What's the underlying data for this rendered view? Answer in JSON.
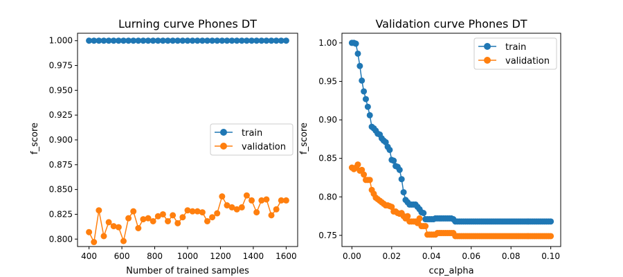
{
  "chart_data": [
    {
      "type": "line",
      "title": "Lurning curve Phones DT",
      "xlabel": "Number of trained samples",
      "ylabel": "f_score",
      "xlim": [
        330,
        1670
      ],
      "ylim": [
        0.7925,
        1.0075
      ],
      "xticks": [
        400,
        600,
        800,
        1000,
        1200,
        1400,
        1600
      ],
      "xtick_labels": [
        "400",
        "600",
        "800",
        "1000",
        "1200",
        "1400",
        "1600"
      ],
      "yticks": [
        0.8,
        0.825,
        0.85,
        0.875,
        0.9,
        0.925,
        0.95,
        0.975,
        1.0
      ],
      "ytick_labels": [
        "0.800",
        "0.825",
        "0.850",
        "0.875",
        "0.900",
        "0.925",
        "0.950",
        "0.975",
        "1.000"
      ],
      "grid": false,
      "legend": "center-right",
      "series": [
        {
          "name": "train",
          "color": "#1f77b4",
          "x": [
            400,
            430,
            460,
            490,
            520,
            550,
            580,
            610,
            640,
            670,
            700,
            730,
            760,
            790,
            820,
            850,
            880,
            910,
            940,
            970,
            1000,
            1030,
            1060,
            1090,
            1120,
            1150,
            1180,
            1210,
            1240,
            1270,
            1300,
            1330,
            1360,
            1390,
            1420,
            1450,
            1480,
            1510,
            1540,
            1570,
            1600
          ],
          "y": [
            1.0,
            1.0,
            1.0,
            1.0,
            1.0,
            1.0,
            1.0,
            1.0,
            1.0,
            1.0,
            1.0,
            1.0,
            1.0,
            1.0,
            1.0,
            1.0,
            1.0,
            1.0,
            1.0,
            1.0,
            1.0,
            1.0,
            1.0,
            1.0,
            1.0,
            1.0,
            1.0,
            1.0,
            1.0,
            1.0,
            1.0,
            1.0,
            1.0,
            1.0,
            1.0,
            1.0,
            1.0,
            1.0,
            1.0,
            1.0,
            1.0
          ]
        },
        {
          "name": "validation",
          "color": "#ff7f0e",
          "x": [
            400,
            430,
            460,
            490,
            520,
            550,
            580,
            610,
            640,
            670,
            700,
            730,
            760,
            790,
            820,
            850,
            880,
            910,
            940,
            970,
            1000,
            1030,
            1060,
            1090,
            1120,
            1150,
            1180,
            1210,
            1240,
            1270,
            1300,
            1330,
            1360,
            1390,
            1420,
            1450,
            1480,
            1510,
            1540,
            1570,
            1600
          ],
          "y": [
            0.807,
            0.797,
            0.829,
            0.803,
            0.817,
            0.813,
            0.812,
            0.798,
            0.821,
            0.828,
            0.811,
            0.82,
            0.821,
            0.818,
            0.823,
            0.825,
            0.818,
            0.824,
            0.816,
            0.822,
            0.829,
            0.828,
            0.828,
            0.827,
            0.818,
            0.822,
            0.826,
            0.843,
            0.834,
            0.832,
            0.83,
            0.832,
            0.844,
            0.839,
            0.827,
            0.839,
            0.84,
            0.824,
            0.83,
            0.839,
            0.839
          ]
        }
      ]
    },
    {
      "type": "line",
      "title": "Validation curve Phones DT",
      "xlabel": "ccp_alpha",
      "ylabel": "f_score",
      "xlim": [
        -0.005,
        0.105
      ],
      "ylim": [
        0.7355,
        1.0125
      ],
      "xticks": [
        0.0,
        0.02,
        0.04,
        0.06,
        0.08,
        0.1
      ],
      "xtick_labels": [
        "0.00",
        "0.02",
        "0.04",
        "0.06",
        "0.08",
        "0.10"
      ],
      "yticks": [
        0.75,
        0.8,
        0.85,
        0.9,
        0.95,
        1.0
      ],
      "ytick_labels": [
        "0.75",
        "0.80",
        "0.85",
        "0.90",
        "0.95",
        "1.00"
      ],
      "grid": false,
      "legend": "top-right",
      "series": [
        {
          "name": "train",
          "color": "#1f77b4",
          "x": [
            0.0,
            0.001,
            0.002,
            0.003,
            0.004,
            0.005,
            0.006,
            0.007,
            0.008,
            0.009,
            0.01,
            0.011,
            0.012,
            0.013,
            0.014,
            0.015,
            0.016,
            0.017,
            0.018,
            0.019,
            0.02,
            0.021,
            0.022,
            0.023,
            0.024,
            0.025,
            0.026,
            0.027,
            0.028,
            0.029,
            0.03,
            0.031,
            0.032,
            0.033,
            0.034,
            0.035,
            0.036,
            0.037,
            0.038,
            0.039,
            0.04,
            0.041,
            0.042,
            0.043,
            0.044,
            0.045,
            0.046,
            0.047,
            0.048,
            0.049,
            0.05,
            0.051,
            0.052,
            0.053,
            0.054,
            0.055,
            0.056,
            0.057,
            0.058,
            0.059,
            0.06,
            0.061,
            0.062,
            0.063,
            0.064,
            0.065,
            0.066,
            0.067,
            0.068,
            0.069,
            0.07,
            0.071,
            0.072,
            0.073,
            0.074,
            0.075,
            0.076,
            0.077,
            0.078,
            0.079,
            0.08,
            0.081,
            0.082,
            0.083,
            0.084,
            0.085,
            0.086,
            0.087,
            0.088,
            0.089,
            0.09,
            0.091,
            0.092,
            0.093,
            0.094,
            0.095,
            0.096,
            0.097,
            0.098,
            0.099,
            0.1
          ],
          "y": [
            1.0,
            1.0,
            0.999,
            0.986,
            0.97,
            0.951,
            0.937,
            0.927,
            0.917,
            0.906,
            0.891,
            0.889,
            0.886,
            0.882,
            0.881,
            0.876,
            0.873,
            0.871,
            0.865,
            0.861,
            0.848,
            0.847,
            0.84,
            0.839,
            0.835,
            0.823,
            0.806,
            0.796,
            0.793,
            0.79,
            0.79,
            0.79,
            0.79,
            0.787,
            0.784,
            0.78,
            0.779,
            0.771,
            0.771,
            0.771,
            0.771,
            0.771,
            0.772,
            0.772,
            0.772,
            0.772,
            0.772,
            0.772,
            0.772,
            0.772,
            0.772,
            0.771,
            0.768,
            0.768,
            0.768,
            0.768,
            0.768,
            0.768,
            0.768,
            0.768,
            0.768,
            0.768,
            0.768,
            0.768,
            0.768,
            0.768,
            0.768,
            0.768,
            0.768,
            0.768,
            0.768,
            0.768,
            0.768,
            0.768,
            0.768,
            0.768,
            0.768,
            0.768,
            0.768,
            0.768,
            0.768,
            0.768,
            0.768,
            0.768,
            0.768,
            0.768,
            0.768,
            0.768,
            0.768,
            0.768,
            0.768,
            0.768,
            0.768,
            0.768,
            0.768,
            0.768,
            0.768,
            0.768,
            0.768,
            0.768,
            0.768
          ]
        },
        {
          "name": "validation",
          "color": "#ff7f0e",
          "x": [
            0.0,
            0.001,
            0.002,
            0.003,
            0.004,
            0.005,
            0.006,
            0.007,
            0.008,
            0.009,
            0.01,
            0.011,
            0.012,
            0.013,
            0.014,
            0.015,
            0.016,
            0.017,
            0.018,
            0.019,
            0.02,
            0.021,
            0.022,
            0.023,
            0.024,
            0.025,
            0.026,
            0.027,
            0.028,
            0.029,
            0.03,
            0.031,
            0.032,
            0.033,
            0.034,
            0.035,
            0.036,
            0.037,
            0.038,
            0.039,
            0.04,
            0.041,
            0.042,
            0.043,
            0.044,
            0.045,
            0.046,
            0.047,
            0.048,
            0.049,
            0.05,
            0.051,
            0.052,
            0.053,
            0.054,
            0.055,
            0.056,
            0.057,
            0.058,
            0.059,
            0.06,
            0.061,
            0.062,
            0.063,
            0.064,
            0.065,
            0.066,
            0.067,
            0.068,
            0.069,
            0.07,
            0.071,
            0.072,
            0.073,
            0.074,
            0.075,
            0.076,
            0.077,
            0.078,
            0.079,
            0.08,
            0.081,
            0.082,
            0.083,
            0.084,
            0.085,
            0.086,
            0.087,
            0.088,
            0.089,
            0.09,
            0.091,
            0.092,
            0.093,
            0.094,
            0.095,
            0.096,
            0.097,
            0.098,
            0.099,
            0.1
          ],
          "y": [
            0.838,
            0.836,
            0.838,
            0.842,
            0.834,
            0.835,
            0.829,
            0.822,
            0.822,
            0.822,
            0.809,
            0.804,
            0.799,
            0.797,
            0.795,
            0.793,
            0.791,
            0.789,
            0.789,
            0.788,
            0.787,
            0.781,
            0.781,
            0.779,
            0.778,
            0.779,
            0.775,
            0.772,
            0.775,
            0.768,
            0.768,
            0.768,
            0.768,
            0.766,
            0.772,
            0.762,
            0.762,
            0.762,
            0.751,
            0.751,
            0.751,
            0.751,
            0.751,
            0.753,
            0.753,
            0.753,
            0.753,
            0.753,
            0.753,
            0.753,
            0.753,
            0.753,
            0.749,
            0.749,
            0.749,
            0.749,
            0.749,
            0.749,
            0.749,
            0.749,
            0.749,
            0.749,
            0.749,
            0.749,
            0.749,
            0.749,
            0.749,
            0.749,
            0.749,
            0.749,
            0.749,
            0.749,
            0.749,
            0.749,
            0.749,
            0.749,
            0.749,
            0.749,
            0.749,
            0.749,
            0.749,
            0.749,
            0.749,
            0.749,
            0.749,
            0.749,
            0.749,
            0.749,
            0.749,
            0.749,
            0.749,
            0.749,
            0.749,
            0.749,
            0.749,
            0.749,
            0.749,
            0.749,
            0.749,
            0.749,
            0.749
          ]
        }
      ]
    }
  ]
}
